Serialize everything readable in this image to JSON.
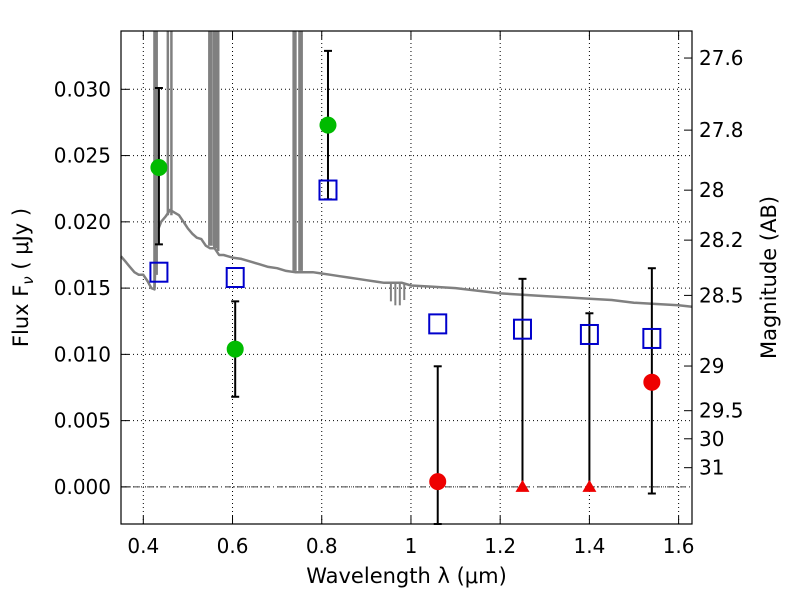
{
  "chart_data": {
    "type": "scatter",
    "xlabel": "Wavelength  λ (μm)",
    "ylabel": "Flux  F",
    "ylabel_sub": "ν",
    "ylabel_unit": "  ( μJy )",
    "y2label": "Magnitude (AB)",
    "xlim": [
      0.35,
      1.63
    ],
    "ylim": [
      -0.0028,
      0.0344
    ],
    "x_ticks": [
      0.4,
      0.6,
      0.8,
      1.0,
      1.2,
      1.4,
      1.6
    ],
    "x_tick_labels": [
      "0.4",
      "0.6",
      "0.8",
      "1",
      "1.2",
      "1.4",
      "1.6"
    ],
    "y_ticks": [
      0.0,
      0.005,
      0.01,
      0.015,
      0.02,
      0.025,
      0.03
    ],
    "y_tick_labels": [
      "0.000",
      "0.005",
      "0.010",
      "0.015",
      "0.020",
      "0.025",
      "0.030"
    ],
    "y2_ticks": [
      {
        "flux": 0.03236,
        "label": "27.6"
      },
      {
        "flux": 0.02692,
        "label": "27.8"
      },
      {
        "flux": 0.02239,
        "label": "28"
      },
      {
        "flux": 0.01862,
        "label": "28.2"
      },
      {
        "flux": 0.01445,
        "label": "28.5"
      },
      {
        "flux": 0.00912,
        "label": "29"
      },
      {
        "flux": 0.00575,
        "label": "29.5"
      },
      {
        "flux": 0.00363,
        "label": "30"
      },
      {
        "flux": 0.00145,
        "label": "31"
      }
    ],
    "grid": true,
    "template_color": "#808080",
    "template_sed": [
      [
        0.35,
        0.0174
      ],
      [
        0.36,
        0.017
      ],
      [
        0.37,
        0.0166
      ],
      [
        0.38,
        0.0162
      ],
      [
        0.39,
        0.016
      ],
      [
        0.4,
        0.016
      ],
      [
        0.41,
        0.0155
      ],
      [
        0.418,
        0.015
      ],
      [
        0.425,
        0.0149
      ],
      [
        0.429,
        0.0185
      ],
      [
        0.434,
        0.0195
      ],
      [
        0.44,
        0.02
      ],
      [
        0.45,
        0.0204
      ],
      [
        0.46,
        0.0209
      ],
      [
        0.47,
        0.0207
      ],
      [
        0.48,
        0.0205
      ],
      [
        0.49,
        0.02
      ],
      [
        0.5,
        0.0195
      ],
      [
        0.51,
        0.0191
      ],
      [
        0.52,
        0.0188
      ],
      [
        0.53,
        0.0187
      ],
      [
        0.54,
        0.0182
      ],
      [
        0.55,
        0.018
      ],
      [
        0.56,
        0.018
      ],
      [
        0.57,
        0.0175
      ],
      [
        0.58,
        0.0175
      ],
      [
        0.59,
        0.0174
      ],
      [
        0.6,
        0.0173
      ],
      [
        0.62,
        0.0172
      ],
      [
        0.64,
        0.017
      ],
      [
        0.66,
        0.0168
      ],
      [
        0.68,
        0.0166
      ],
      [
        0.7,
        0.0165
      ],
      [
        0.72,
        0.0163
      ],
      [
        0.74,
        0.0162
      ],
      [
        0.76,
        0.0162
      ],
      [
        0.78,
        0.0162
      ],
      [
        0.8,
        0.0161
      ],
      [
        0.82,
        0.016
      ],
      [
        0.84,
        0.0159
      ],
      [
        0.86,
        0.0158
      ],
      [
        0.88,
        0.0157
      ],
      [
        0.9,
        0.0156
      ],
      [
        0.92,
        0.0155
      ],
      [
        0.94,
        0.0154
      ],
      [
        0.96,
        0.0154
      ],
      [
        0.98,
        0.0154
      ],
      [
        1.0,
        0.0152
      ],
      [
        1.05,
        0.0151
      ],
      [
        1.1,
        0.015
      ],
      [
        1.15,
        0.0148
      ],
      [
        1.2,
        0.0146
      ],
      [
        1.25,
        0.0145
      ],
      [
        1.3,
        0.0144
      ],
      [
        1.35,
        0.0143
      ],
      [
        1.4,
        0.0142
      ],
      [
        1.45,
        0.0141
      ],
      [
        1.5,
        0.0139
      ],
      [
        1.55,
        0.0138
      ],
      [
        1.6,
        0.0137
      ],
      [
        1.63,
        0.0136
      ]
    ],
    "template_spikes": [
      {
        "x": 0.425,
        "from": 0.015,
        "to": 0.0344
      },
      {
        "x": 0.43,
        "from": 0.016,
        "to": 0.0344
      },
      {
        "x": 0.455,
        "from": 0.0205,
        "to": 0.0344
      },
      {
        "x": 0.463,
        "from": 0.0205,
        "to": 0.0344
      },
      {
        "x": 0.548,
        "from": 0.0182,
        "to": 0.0344
      },
      {
        "x": 0.553,
        "from": 0.0182,
        "to": 0.0344
      },
      {
        "x": 0.559,
        "from": 0.018,
        "to": 0.0344
      },
      {
        "x": 0.563,
        "from": 0.018,
        "to": 0.0344
      },
      {
        "x": 0.568,
        "from": 0.0178,
        "to": 0.0344
      },
      {
        "x": 0.737,
        "from": 0.0163,
        "to": 0.0344
      },
      {
        "x": 0.741,
        "from": 0.0163,
        "to": 0.0344
      },
      {
        "x": 0.75,
        "from": 0.0163,
        "to": 0.0344
      },
      {
        "x": 0.755,
        "from": 0.0163,
        "to": 0.0344
      }
    ],
    "template_dips": [
      {
        "x": 0.955,
        "from": 0.0154,
        "to": 0.014
      },
      {
        "x": 0.965,
        "from": 0.0154,
        "to": 0.0137
      },
      {
        "x": 0.975,
        "from": 0.0154,
        "to": 0.0137
      },
      {
        "x": 0.985,
        "from": 0.0154,
        "to": 0.0141
      }
    ],
    "series": [
      {
        "marker": "circle",
        "color": "#00bb00",
        "points": [
          {
            "x": 0.435,
            "y": 0.0241,
            "err_low": 0.0183,
            "err_high": 0.0301
          },
          {
            "x": 0.606,
            "y": 0.0104,
            "err_low": 0.0068,
            "err_high": 0.014
          },
          {
            "x": 0.814,
            "y": 0.0273,
            "err_low": 0.0217,
            "err_high": 0.0329
          }
        ]
      },
      {
        "marker": "open-square",
        "color": "#0000cc",
        "points": [
          {
            "x": 0.435,
            "y": 0.0162
          },
          {
            "x": 0.606,
            "y": 0.0158
          },
          {
            "x": 0.814,
            "y": 0.0224
          },
          {
            "x": 1.06,
            "y": 0.0123
          },
          {
            "x": 1.25,
            "y": 0.0119
          },
          {
            "x": 1.4,
            "y": 0.0115
          },
          {
            "x": 1.54,
            "y": 0.0112
          }
        ]
      },
      {
        "marker": "circle",
        "color": "#ee0000",
        "points": [
          {
            "x": 1.06,
            "y": 0.0004,
            "err_low": -0.0028,
            "err_high": 0.0091
          },
          {
            "x": 1.54,
            "y": 0.0079,
            "err_low": -0.0005,
            "err_high": 0.0165
          }
        ]
      },
      {
        "marker": "triangle",
        "color": "#ee0000",
        "points": [
          {
            "x": 1.25,
            "y": 0.0,
            "err_low": null,
            "err_high": 0.0157
          },
          {
            "x": 1.4,
            "y": 0.0,
            "err_low": null,
            "err_high": 0.0131
          }
        ]
      }
    ]
  }
}
